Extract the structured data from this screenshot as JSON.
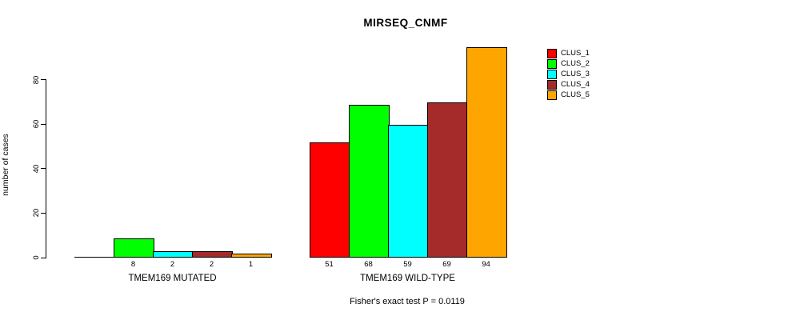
{
  "chart_data": {
    "type": "bar",
    "title": "MIRSEQ_CNMF",
    "ylabel": "number of cases",
    "xlabel": "",
    "ylim": [
      0,
      94
    ],
    "yticks": [
      0,
      20,
      40,
      60,
      80
    ],
    "grid": false,
    "legend_position": "right",
    "legend": [
      {
        "label": "CLUS_1",
        "color": "#FF0000"
      },
      {
        "label": "CLUS_2",
        "color": "#00FF00"
      },
      {
        "label": "CLUS_3",
        "color": "#00FFFF"
      },
      {
        "label": "CLUS_4",
        "color": "#A52A2A"
      },
      {
        "label": "CLUS_5",
        "color": "#FFA500"
      }
    ],
    "groups": [
      {
        "label": "TMEM169 MUTATED",
        "values": [
          0,
          8,
          2,
          2,
          1
        ],
        "bar_labels": [
          "",
          "8",
          "2",
          "2",
          "1"
        ]
      },
      {
        "label": "TMEM169 WILD-TYPE",
        "values": [
          51,
          68,
          59,
          69,
          94
        ],
        "bar_labels": [
          "51",
          "68",
          "59",
          "69",
          "94"
        ]
      }
    ],
    "caption": "Fisher's exact test P = 0.0119"
  }
}
